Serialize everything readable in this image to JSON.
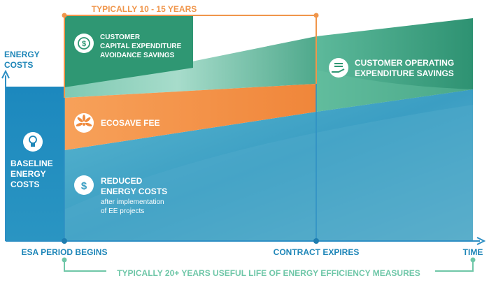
{
  "axes": {
    "y_label_line1": "ENERGY",
    "y_label_line2": "COSTS",
    "x_label": "TIME"
  },
  "brackets": {
    "contract_period": "TYPICALLY 10 - 15 YEARS",
    "useful_life": "TYPICALLY 20+ YEARS USEFUL LIFE OF ENERGY EFFICIENCY MEASURES"
  },
  "milestones": {
    "start": "ESA PERIOD BEGINS",
    "contract_end": "CONTRACT EXPIRES"
  },
  "regions": {
    "capex": {
      "line1": "CUSTOMER",
      "line2": "CAPITAL EXPENDITURE",
      "line3": "AVOIDANCE SAVINGS",
      "icon": "dollar-cycle-icon"
    },
    "opex": {
      "line1": "CUSTOMER OPERATING",
      "line2": "EXPENDITURE SAVINGS",
      "icon": "cash-hand-icon"
    },
    "fee": {
      "label": "ECOSAVE FEE",
      "icon": "leaf-flower-icon"
    },
    "baseline": {
      "line1": "BASELINE",
      "line2": "ENERGY",
      "line3": "COSTS",
      "icon": "lightbulb-icon"
    },
    "reduced": {
      "line1": "REDUCED",
      "line2": "ENERGY COSTS",
      "sub1": "after implementation",
      "sub2": "of EE projects",
      "icon": "dollar-sign-icon"
    }
  },
  "colors": {
    "orange": "#F08A3C",
    "teal_dark": "#2F8F6E",
    "teal_light": "#7CC8B8",
    "blue": "#3FA0C8",
    "blue_dark": "#1E86B8",
    "bracket_green": "#6FC7A8"
  }
}
